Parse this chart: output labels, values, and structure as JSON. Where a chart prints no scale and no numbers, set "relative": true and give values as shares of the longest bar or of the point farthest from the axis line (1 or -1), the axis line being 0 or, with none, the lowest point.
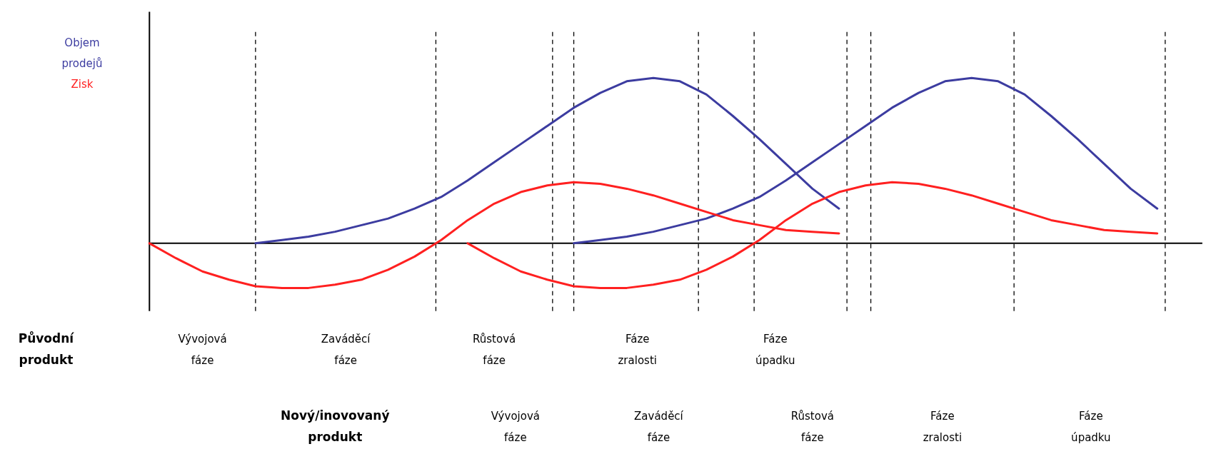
{
  "chart_data": {
    "type": "line",
    "relative": true,
    "tick_labels": false,
    "line_style": "solid",
    "categories": [
      null,
      null,
      null,
      null,
      null,
      null,
      null,
      null,
      null,
      null,
      null,
      null,
      null,
      null,
      null,
      null,
      null,
      null,
      null,
      null,
      null,
      null,
      null,
      null,
      null,
      null,
      null,
      null,
      null,
      null,
      null,
      null,
      null,
      null,
      null,
      null,
      null,
      null,
      null,
      null
    ],
    "series": [
      {
        "name": "Objem prodejů",
        "color": "#3c3ca0",
        "values": [
          null,
          null,
          null,
          null,
          0,
          0.02,
          0.04,
          0.07,
          0.11,
          0.15,
          0.21,
          0.28,
          0.38,
          0.49,
          0.6,
          0.71,
          0.82,
          0.91,
          0.98,
          1.0,
          0.98,
          0.9,
          0.77,
          0.63,
          0.48,
          0.33,
          0.21,
          null,
          null,
          null,
          null,
          null,
          null,
          null,
          null,
          null,
          null,
          null,
          null,
          null
        ]
      },
      {
        "color": "#3c3ca0",
        "values": [
          null,
          null,
          null,
          null,
          null,
          null,
          null,
          null,
          null,
          null,
          null,
          null,
          null,
          null,
          null,
          null,
          0,
          0.02,
          0.04,
          0.07,
          0.11,
          0.15,
          0.21,
          0.28,
          0.38,
          0.49,
          0.6,
          0.71,
          0.82,
          0.91,
          0.98,
          1.0,
          0.98,
          0.9,
          0.77,
          0.63,
          0.48,
          0.33,
          0.21,
          null
        ]
      },
      {
        "name": "Zisk",
        "color": "#ff2020",
        "values": [
          0,
          -0.09,
          -0.17,
          -0.22,
          -0.26,
          -0.27,
          -0.27,
          -0.25,
          -0.22,
          -0.16,
          -0.08,
          0.02,
          0.14,
          0.24,
          0.31,
          0.35,
          0.37,
          0.36,
          0.33,
          0.29,
          0.24,
          0.19,
          0.14,
          0.11,
          0.08,
          0.07,
          0.06,
          null,
          null,
          null,
          null,
          null,
          null,
          null,
          null,
          null,
          null,
          null,
          null,
          null
        ]
      },
      {
        "color": "#ff2020",
        "values": [
          null,
          null,
          null,
          null,
          null,
          null,
          null,
          null,
          null,
          null,
          null,
          null,
          0,
          -0.09,
          -0.17,
          -0.22,
          -0.26,
          -0.27,
          -0.27,
          -0.25,
          -0.22,
          -0.16,
          -0.08,
          0.02,
          0.14,
          0.24,
          0.31,
          0.35,
          0.37,
          0.36,
          0.33,
          0.29,
          0.24,
          0.19,
          0.14,
          0.11,
          0.08,
          0.07,
          0.06,
          null
        ]
      }
    ],
    "annotations": [
      "Původní produkt",
      "Vývojová fáze",
      "Zaváděcí fáze",
      "Růstová fáze",
      "Fáze zralosti",
      "Fáze úpadku",
      "Nový/inovovaný produkt",
      "Vývojová fáze",
      "Zaváděcí fáze",
      "Růstová fáze",
      "Fáze zralosti",
      "Fáze úpadku"
    ]
  }
}
